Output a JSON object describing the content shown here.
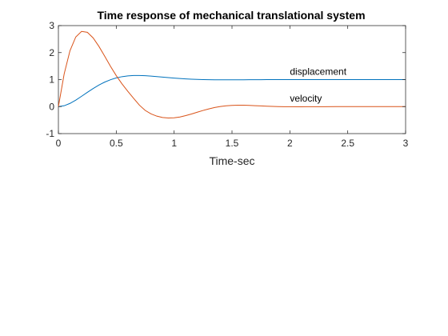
{
  "chart_data": {
    "type": "line",
    "title": "Time response of mechanical translational system",
    "xlabel": "Time-sec",
    "ylabel": "",
    "xlim": [
      0,
      3
    ],
    "ylim": [
      -1,
      3
    ],
    "xticks": [
      0,
      0.5,
      1,
      1.5,
      2,
      2.5,
      3
    ],
    "xtick_labels": [
      "0",
      "0.5",
      "1",
      "1.5",
      "2",
      "2.5",
      "3"
    ],
    "yticks": [
      -1,
      0,
      1,
      2,
      3
    ],
    "ytick_labels": [
      "-1",
      "0",
      "1",
      "2",
      "3"
    ],
    "grid": false,
    "legend": false,
    "x": [
      0,
      0.05,
      0.1,
      0.15,
      0.2,
      0.25,
      0.3,
      0.35,
      0.4,
      0.45,
      0.5,
      0.55,
      0.6,
      0.65,
      0.7,
      0.75,
      0.8,
      0.85,
      0.9,
      0.95,
      1.0,
      1.05,
      1.1,
      1.15,
      1.2,
      1.25,
      1.3,
      1.35,
      1.4,
      1.45,
      1.5,
      1.55,
      1.6,
      1.65,
      1.7,
      1.75,
      1.8,
      1.85,
      1.9,
      1.95,
      2.0,
      2.1,
      2.2,
      2.3,
      2.4,
      2.5,
      2.6,
      2.7,
      2.8,
      2.9,
      3.0
    ],
    "series": [
      {
        "color": "#0072BD",
        "values": [
          0,
          0.032,
          0.118,
          0.24,
          0.381,
          0.528,
          0.669,
          0.797,
          0.907,
          0.995,
          1.062,
          1.109,
          1.138,
          1.151,
          1.152,
          1.144,
          1.13,
          1.112,
          1.093,
          1.074,
          1.056,
          1.04,
          1.026,
          1.015,
          1.006,
          1.0,
          0.995,
          0.993,
          0.991,
          0.991,
          0.991,
          0.992,
          0.994,
          0.995,
          0.997,
          0.998,
          0.999,
          1.0,
          1.0,
          1.001,
          1.001,
          1.001,
          1.0,
          1.0,
          1.0,
          1.0,
          1.0,
          1.0,
          1.0,
          1.0,
          1.0
        ]
      },
      {
        "color": "#D95319",
        "values": [
          0,
          1.213,
          2.069,
          2.578,
          2.784,
          2.751,
          2.545,
          2.231,
          1.867,
          1.494,
          1.146,
          0.84,
          0.565,
          0.307,
          0.053,
          -0.141,
          -0.27,
          -0.353,
          -0.402,
          -0.422,
          -0.415,
          -0.384,
          -0.334,
          -0.274,
          -0.208,
          -0.143,
          -0.084,
          -0.034,
          0.005,
          0.031,
          0.046,
          0.051,
          0.05,
          0.044,
          0.035,
          0.025,
          0.015,
          0.007,
          0.001,
          -0.003,
          -0.005,
          -0.006,
          -0.004,
          -0.002,
          0.0,
          0.001,
          0.001,
          0.0,
          0.0,
          0.0,
          0.0
        ]
      }
    ],
    "annotations": [
      {
        "text": "displacement",
        "x": 2.0,
        "y": 1.18
      },
      {
        "text": "velocity",
        "x": 2.0,
        "y": 0.18
      }
    ]
  }
}
